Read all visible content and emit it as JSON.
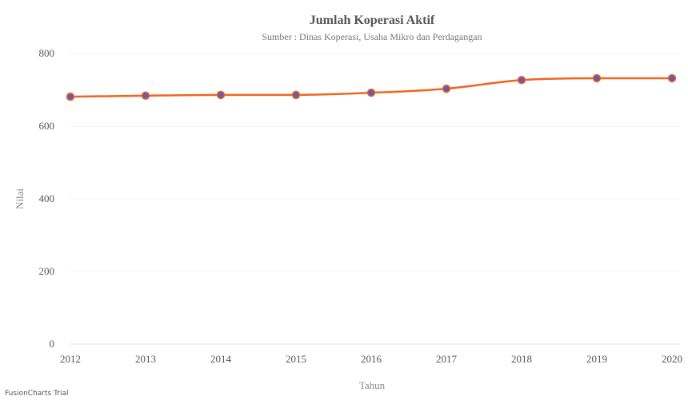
{
  "chart_data": {
    "type": "line",
    "title": "Jumlah Koperasi Aktif",
    "subtitle": "Sumber : Dinas Koperasi, Usaha Mikro dan Perdagangan",
    "xlabel": "Tahun",
    "ylabel": "Nilai",
    "categories": [
      "2012",
      "2013",
      "2014",
      "2015",
      "2016",
      "2017",
      "2018",
      "2019",
      "2020"
    ],
    "series": [
      {
        "values": [
          681,
          684,
          686,
          686,
          692,
          703,
          727,
          732,
          732
        ],
        "color": "#f0661e",
        "marker_color": "#6a5aa8"
      }
    ],
    "ylim": [
      0,
      800
    ],
    "yticks": [
      "0",
      "200",
      "400",
      "600",
      "800"
    ],
    "grid": true,
    "legend": "none"
  },
  "watermark": "FusionCharts Trial"
}
